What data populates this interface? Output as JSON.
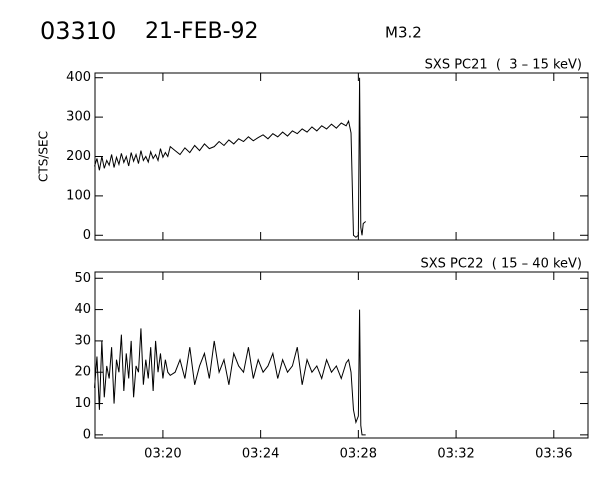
{
  "header": {
    "id": "03310",
    "date": "21-FEB-92",
    "class": "M3.2"
  },
  "chart_data": [
    {
      "type": "line",
      "title": "SXS PC21  (  3 – 15 keV)",
      "y_label": "CTS/SEC",
      "color": "#000000",
      "xlim": [
        17.22,
        37.4
      ],
      "ylim": [
        -12,
        412
      ],
      "yticks": [
        0,
        100,
        200,
        300,
        400
      ],
      "xticks": [
        {
          "value": 20,
          "label": "03:20"
        },
        {
          "value": 24,
          "label": "03:24"
        },
        {
          "value": 28,
          "label": "03:28"
        },
        {
          "value": 32,
          "label": "03:32"
        },
        {
          "value": 36,
          "label": "03:36"
        }
      ],
      "x": [
        17.2,
        17.3,
        17.4,
        17.5,
        17.6,
        17.7,
        17.8,
        17.9,
        18.0,
        18.1,
        18.2,
        18.3,
        18.4,
        18.5,
        18.6,
        18.7,
        18.8,
        18.9,
        19.0,
        19.1,
        19.2,
        19.3,
        19.4,
        19.5,
        19.6,
        19.7,
        19.8,
        19.9,
        20.0,
        20.1,
        20.2,
        20.3,
        20.5,
        20.7,
        20.9,
        21.1,
        21.3,
        21.5,
        21.7,
        21.9,
        22.1,
        22.3,
        22.5,
        22.7,
        22.9,
        23.1,
        23.3,
        23.5,
        23.7,
        23.9,
        24.1,
        24.3,
        24.5,
        24.7,
        24.9,
        25.1,
        25.3,
        25.5,
        25.7,
        25.9,
        26.1,
        26.3,
        26.5,
        26.7,
        26.9,
        27.1,
        27.3,
        27.5,
        27.6,
        27.7,
        27.8,
        27.9,
        28.0,
        28.05,
        28.1,
        28.15,
        28.2,
        28.3
      ],
      "values": [
        175,
        195,
        165,
        200,
        170,
        190,
        178,
        205,
        172,
        198,
        180,
        208,
        185,
        200,
        176,
        210,
        188,
        205,
        182,
        215,
        190,
        200,
        186,
        212,
        195,
        205,
        190,
        220,
        198,
        210,
        200,
        225,
        215,
        205,
        222,
        210,
        228,
        215,
        232,
        220,
        225,
        238,
        228,
        242,
        232,
        245,
        238,
        250,
        240,
        248,
        255,
        245,
        258,
        250,
        262,
        252,
        265,
        258,
        270,
        262,
        275,
        265,
        278,
        270,
        282,
        272,
        285,
        278,
        290,
        260,
        0,
        -5,
        0,
        400,
        20,
        0,
        30,
        35
      ]
    },
    {
      "type": "line",
      "title": "SXS PC22  ( 15 – 40 keV)",
      "color": "#000000",
      "xlim": [
        17.22,
        37.4
      ],
      "ylim": [
        -1,
        52
      ],
      "yticks": [
        0,
        10,
        20,
        30,
        40,
        50
      ],
      "xticks": [
        {
          "value": 20,
          "label": "03:20"
        },
        {
          "value": 24,
          "label": "03:24"
        },
        {
          "value": 28,
          "label": "03:28"
        },
        {
          "value": 32,
          "label": "03:32"
        },
        {
          "value": 36,
          "label": "03:36"
        }
      ],
      "x": [
        17.2,
        17.3,
        17.4,
        17.5,
        17.6,
        17.7,
        17.8,
        17.9,
        18.0,
        18.1,
        18.2,
        18.3,
        18.4,
        18.5,
        18.6,
        18.7,
        18.8,
        18.9,
        19.0,
        19.1,
        19.2,
        19.3,
        19.4,
        19.5,
        19.6,
        19.7,
        19.8,
        19.9,
        20.0,
        20.1,
        20.2,
        20.3,
        20.5,
        20.7,
        20.9,
        21.1,
        21.3,
        21.5,
        21.7,
        21.9,
        22.1,
        22.3,
        22.5,
        22.7,
        22.9,
        23.1,
        23.3,
        23.5,
        23.7,
        23.9,
        24.1,
        24.3,
        24.5,
        24.7,
        24.9,
        25.1,
        25.3,
        25.5,
        25.7,
        25.9,
        26.1,
        26.3,
        26.5,
        26.7,
        26.9,
        27.1,
        27.3,
        27.5,
        27.6,
        27.7,
        27.8,
        27.9,
        28.0,
        28.05,
        28.1,
        28.15,
        28.2,
        28.3
      ],
      "values": [
        15,
        25,
        8,
        30,
        12,
        22,
        18,
        28,
        10,
        24,
        20,
        32,
        14,
        26,
        18,
        30,
        12,
        22,
        20,
        34,
        16,
        24,
        18,
        28,
        14,
        30,
        20,
        26,
        18,
        24,
        20,
        19,
        20,
        24,
        18,
        28,
        16,
        22,
        26,
        18,
        30,
        20,
        24,
        16,
        26,
        22,
        20,
        28,
        18,
        24,
        20,
        22,
        26,
        18,
        24,
        20,
        22,
        28,
        16,
        24,
        20,
        22,
        18,
        24,
        20,
        22,
        18,
        23,
        24,
        20,
        8,
        4,
        6,
        40,
        3,
        0,
        0,
        0
      ]
    }
  ]
}
